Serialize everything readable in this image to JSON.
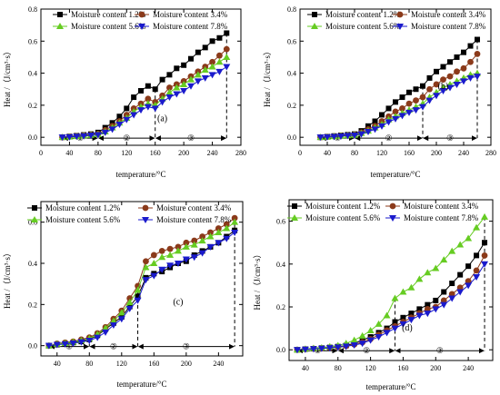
{
  "colors": {
    "s1": "#000000",
    "s2": "#8b3a1a",
    "s3": "#66cc22",
    "s4": "#1a1acc",
    "stage": "#cc33cc"
  },
  "chart_data": [
    {
      "type": "line",
      "panel_label": "(a)",
      "xlabel": "temperature/°C",
      "ylabel": "Heat /（J/cm³·s）",
      "xlim": [
        0,
        280
      ],
      "ylim": [
        -0.05,
        0.8
      ],
      "xticks": [
        "0",
        "40",
        "80",
        "120",
        "160",
        "200",
        "240",
        "280"
      ],
      "yticks": [
        "0.0",
        "0.2",
        "0.4",
        "0.6",
        "0.8"
      ],
      "legend_position": "top-left",
      "boundaries": [
        30,
        80,
        160,
        260
      ],
      "stage_labels": [
        "①",
        "②",
        "③"
      ],
      "series": [
        {
          "name": "Moisture content 1.2%",
          "marker": "square",
          "x": [
            30,
            40,
            50,
            60,
            70,
            80,
            90,
            100,
            110,
            120,
            130,
            140,
            150,
            160,
            170,
            180,
            190,
            200,
            210,
            220,
            230,
            240,
            250,
            260
          ],
          "values": [
            0,
            0.005,
            0.01,
            0.015,
            0.02,
            0.03,
            0.06,
            0.09,
            0.13,
            0.18,
            0.25,
            0.29,
            0.32,
            0.3,
            0.36,
            0.39,
            0.43,
            0.45,
            0.49,
            0.53,
            0.56,
            0.6,
            0.62,
            0.65
          ]
        },
        {
          "name": "Moisture content 3.4%",
          "marker": "circle",
          "x": [
            30,
            40,
            50,
            60,
            70,
            80,
            90,
            100,
            110,
            120,
            130,
            140,
            150,
            160,
            170,
            180,
            190,
            200,
            210,
            220,
            230,
            240,
            250,
            260
          ],
          "values": [
            0,
            0.004,
            0.008,
            0.012,
            0.016,
            0.022,
            0.045,
            0.07,
            0.1,
            0.14,
            0.18,
            0.21,
            0.24,
            0.22,
            0.26,
            0.31,
            0.33,
            0.35,
            0.38,
            0.41,
            0.44,
            0.47,
            0.51,
            0.55
          ]
        },
        {
          "name": "Moisture content 5.6%",
          "marker": "triangle-up",
          "x": [
            30,
            40,
            50,
            60,
            70,
            80,
            90,
            100,
            110,
            120,
            130,
            140,
            150,
            160,
            170,
            180,
            190,
            200,
            210,
            220,
            230,
            240,
            250,
            260
          ],
          "values": [
            0,
            0.003,
            0.006,
            0.01,
            0.014,
            0.018,
            0.035,
            0.06,
            0.09,
            0.12,
            0.16,
            0.19,
            0.21,
            0.2,
            0.24,
            0.28,
            0.31,
            0.33,
            0.36,
            0.39,
            0.42,
            0.44,
            0.47,
            0.5
          ]
        },
        {
          "name": "Moisture content 7.8%",
          "marker": "triangle-down",
          "x": [
            30,
            40,
            50,
            60,
            70,
            80,
            90,
            100,
            110,
            120,
            130,
            140,
            150,
            160,
            170,
            180,
            190,
            200,
            210,
            220,
            230,
            240,
            250,
            260
          ],
          "values": [
            0,
            0.002,
            0.005,
            0.008,
            0.012,
            0.015,
            0.03,
            0.05,
            0.08,
            0.11,
            0.14,
            0.17,
            0.19,
            0.18,
            0.22,
            0.25,
            0.27,
            0.29,
            0.32,
            0.35,
            0.37,
            0.39,
            0.41,
            0.44
          ]
        }
      ]
    },
    {
      "type": "line",
      "panel_label": "(b)",
      "xlabel": "temperature/°C",
      "ylabel": "Heat /（J/cm³·s）",
      "xlim": [
        0,
        280
      ],
      "ylim": [
        -0.05,
        0.8
      ],
      "xticks": [
        "0",
        "40",
        "80",
        "120",
        "160",
        "200",
        "240",
        "280"
      ],
      "yticks": [
        "0.0",
        "0.2",
        "0.4",
        "0.6",
        "0.8"
      ],
      "legend_position": "top-left",
      "boundaries": [
        30,
        80,
        180,
        260
      ],
      "stage_labels": [
        "①",
        "②",
        "③"
      ],
      "series": [
        {
          "name": "Moisture content 1.2%",
          "marker": "square",
          "x": [
            30,
            40,
            50,
            60,
            70,
            80,
            90,
            100,
            110,
            120,
            130,
            140,
            150,
            160,
            170,
            180,
            190,
            200,
            210,
            220,
            230,
            240,
            250,
            260
          ],
          "values": [
            0,
            0.004,
            0.008,
            0.012,
            0.016,
            0.02,
            0.04,
            0.07,
            0.1,
            0.14,
            0.18,
            0.22,
            0.25,
            0.28,
            0.3,
            0.32,
            0.37,
            0.41,
            0.44,
            0.47,
            0.5,
            0.53,
            0.57,
            0.61
          ]
        },
        {
          "name": "Moisture content 3.4%",
          "marker": "circle",
          "x": [
            30,
            40,
            50,
            60,
            70,
            80,
            90,
            100,
            110,
            120,
            130,
            140,
            150,
            160,
            170,
            180,
            190,
            200,
            210,
            220,
            230,
            240,
            250,
            260
          ],
          "values": [
            0,
            0.003,
            0.006,
            0.009,
            0.012,
            0.016,
            0.03,
            0.05,
            0.07,
            0.1,
            0.13,
            0.16,
            0.18,
            0.21,
            0.23,
            0.25,
            0.3,
            0.33,
            0.36,
            0.38,
            0.41,
            0.43,
            0.47,
            0.52
          ]
        },
        {
          "name": "Moisture content 5.6%",
          "marker": "triangle-up",
          "x": [
            30,
            40,
            50,
            60,
            70,
            80,
            90,
            100,
            110,
            120,
            130,
            140,
            150,
            160,
            170,
            180,
            190,
            200,
            210,
            220,
            230,
            240,
            250,
            260
          ],
          "values": [
            0,
            0.002,
            0.005,
            0.008,
            0.011,
            0.014,
            0.025,
            0.04,
            0.06,
            0.08,
            0.11,
            0.13,
            0.15,
            0.17,
            0.19,
            0.21,
            0.25,
            0.28,
            0.31,
            0.33,
            0.35,
            0.37,
            0.39,
            0.4
          ]
        },
        {
          "name": "Moisture content 7.8%",
          "marker": "triangle-down",
          "x": [
            30,
            40,
            50,
            60,
            70,
            80,
            90,
            100,
            110,
            120,
            130,
            140,
            150,
            160,
            170,
            180,
            190,
            200,
            210,
            220,
            230,
            240,
            250,
            260
          ],
          "values": [
            0,
            0.002,
            0.004,
            0.007,
            0.01,
            0.012,
            0.02,
            0.035,
            0.05,
            0.07,
            0.095,
            0.115,
            0.135,
            0.155,
            0.17,
            0.19,
            0.23,
            0.26,
            0.29,
            0.31,
            0.33,
            0.35,
            0.37,
            0.38
          ]
        }
      ]
    },
    {
      "type": "line",
      "panel_label": "(c)",
      "xlabel": "temperature/°C",
      "ylabel": "Heat /（J/cm³·s）",
      "xlim": [
        20,
        270
      ],
      "ylim": [
        -0.05,
        0.7
      ],
      "xticks": [
        "40",
        "80",
        "120",
        "160",
        "200",
        "240"
      ],
      "xtick_values": [
        40,
        80,
        120,
        160,
        200,
        240
      ],
      "yticks": [
        "0.0",
        "0.2",
        "0.4",
        "0.6"
      ],
      "legend_position": "top",
      "boundaries": [
        30,
        80,
        140,
        260
      ],
      "stage_labels": [
        "①",
        "②",
        "③"
      ],
      "series": [
        {
          "name": "Moisture content 1.2%",
          "marker": "square",
          "x": [
            30,
            40,
            50,
            60,
            70,
            80,
            90,
            100,
            110,
            120,
            130,
            140,
            150,
            160,
            170,
            180,
            190,
            200,
            210,
            220,
            230,
            240,
            250,
            260
          ],
          "values": [
            0,
            0.005,
            0.01,
            0.015,
            0.02,
            0.03,
            0.05,
            0.08,
            0.11,
            0.14,
            0.19,
            0.24,
            0.33,
            0.35,
            0.36,
            0.38,
            0.4,
            0.41,
            0.44,
            0.46,
            0.48,
            0.5,
            0.53,
            0.56
          ]
        },
        {
          "name": "Moisture content 3.4%",
          "marker": "circle",
          "x": [
            30,
            40,
            50,
            60,
            70,
            80,
            90,
            100,
            110,
            120,
            130,
            140,
            150,
            160,
            170,
            180,
            190,
            200,
            210,
            220,
            230,
            240,
            250,
            260
          ],
          "values": [
            0,
            0.01,
            0.015,
            0.02,
            0.03,
            0.04,
            0.06,
            0.09,
            0.13,
            0.17,
            0.23,
            0.29,
            0.41,
            0.44,
            0.46,
            0.47,
            0.48,
            0.5,
            0.51,
            0.53,
            0.55,
            0.57,
            0.59,
            0.62
          ]
        },
        {
          "name": "Moisture content 5.6%",
          "marker": "triangle-up",
          "x": [
            30,
            40,
            50,
            60,
            70,
            80,
            90,
            100,
            110,
            120,
            130,
            140,
            150,
            160,
            170,
            180,
            190,
            200,
            210,
            220,
            230,
            240,
            250,
            260
          ],
          "values": [
            0,
            0.008,
            0.012,
            0.018,
            0.025,
            0.035,
            0.055,
            0.085,
            0.12,
            0.16,
            0.21,
            0.27,
            0.38,
            0.4,
            0.43,
            0.44,
            0.46,
            0.48,
            0.49,
            0.51,
            0.53,
            0.55,
            0.57,
            0.6
          ]
        },
        {
          "name": "Moisture content 7.8%",
          "marker": "triangle-down",
          "x": [
            30,
            40,
            50,
            60,
            70,
            80,
            90,
            100,
            110,
            120,
            130,
            140,
            150,
            160,
            170,
            180,
            190,
            200,
            210,
            220,
            230,
            240,
            250,
            260
          ],
          "values": [
            0,
            0.005,
            0.008,
            0.012,
            0.018,
            0.025,
            0.04,
            0.065,
            0.1,
            0.13,
            0.18,
            0.22,
            0.32,
            0.34,
            0.37,
            0.39,
            0.4,
            0.42,
            0.43,
            0.45,
            0.48,
            0.5,
            0.52,
            0.55
          ]
        }
      ]
    },
    {
      "type": "line",
      "panel_label": "(d)",
      "xlabel": "temperature/°C",
      "ylabel": "Heat /（J/cm³·s）",
      "xlim": [
        20,
        270
      ],
      "ylim": [
        -0.05,
        0.7
      ],
      "xticks": [
        "40",
        "80",
        "120",
        "160",
        "200",
        "240"
      ],
      "xtick_values": [
        40,
        80,
        120,
        160,
        200,
        240
      ],
      "yticks": [
        "0.0",
        "0.2",
        "0.4",
        "0.6"
      ],
      "legend_position": "top",
      "boundaries": [
        30,
        80,
        150,
        260
      ],
      "stage_labels": [
        "①",
        "②",
        "③"
      ],
      "series": [
        {
          "name": "Moisture content 1.2%",
          "marker": "square",
          "x": [
            30,
            40,
            50,
            60,
            70,
            80,
            90,
            100,
            110,
            120,
            130,
            140,
            150,
            160,
            170,
            180,
            190,
            200,
            210,
            220,
            230,
            240,
            250,
            260
          ],
          "values": [
            0,
            0.003,
            0.005,
            0.008,
            0.011,
            0.015,
            0.02,
            0.03,
            0.045,
            0.06,
            0.08,
            0.1,
            0.13,
            0.15,
            0.17,
            0.19,
            0.21,
            0.23,
            0.27,
            0.31,
            0.35,
            0.39,
            0.44,
            0.5
          ]
        },
        {
          "name": "Moisture content 3.4%",
          "marker": "circle",
          "x": [
            30,
            40,
            50,
            60,
            70,
            80,
            90,
            100,
            110,
            120,
            130,
            140,
            150,
            160,
            170,
            180,
            190,
            200,
            210,
            220,
            230,
            240,
            250,
            260
          ],
          "values": [
            0,
            0.003,
            0.005,
            0.007,
            0.01,
            0.013,
            0.018,
            0.025,
            0.035,
            0.05,
            0.07,
            0.09,
            0.11,
            0.13,
            0.15,
            0.17,
            0.19,
            0.2,
            0.23,
            0.26,
            0.29,
            0.32,
            0.37,
            0.44
          ]
        },
        {
          "name": "Moisture content 5.6%",
          "marker": "triangle-up",
          "x": [
            30,
            40,
            50,
            60,
            70,
            80,
            90,
            100,
            110,
            120,
            130,
            140,
            150,
            160,
            170,
            180,
            190,
            200,
            210,
            220,
            230,
            240,
            250,
            260
          ],
          "values": [
            0,
            0.004,
            0.007,
            0.01,
            0.015,
            0.02,
            0.03,
            0.045,
            0.065,
            0.09,
            0.12,
            0.16,
            0.24,
            0.27,
            0.29,
            0.33,
            0.36,
            0.38,
            0.42,
            0.46,
            0.49,
            0.52,
            0.57,
            0.62
          ]
        },
        {
          "name": "Moisture content 7.8%",
          "marker": "triangle-down",
          "x": [
            30,
            40,
            50,
            60,
            70,
            80,
            90,
            100,
            110,
            120,
            130,
            140,
            150,
            160,
            170,
            180,
            190,
            200,
            210,
            220,
            230,
            240,
            250,
            260
          ],
          "values": [
            0,
            0.002,
            0.004,
            0.006,
            0.009,
            0.012,
            0.016,
            0.022,
            0.03,
            0.045,
            0.06,
            0.08,
            0.1,
            0.12,
            0.14,
            0.16,
            0.17,
            0.19,
            0.21,
            0.24,
            0.27,
            0.3,
            0.34,
            0.4
          ]
        }
      ]
    }
  ]
}
